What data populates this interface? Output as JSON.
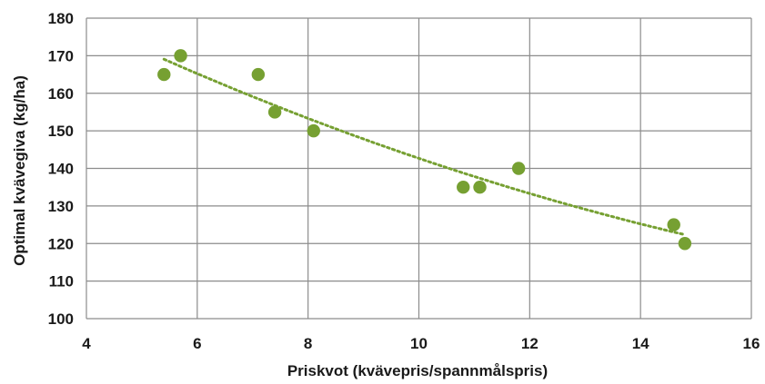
{
  "chart_data": {
    "type": "scatter",
    "title": "",
    "xlabel": "Priskvot  (kvävepris/spannmålspris)",
    "ylabel": "Optimal kvävegiva (kg/ha)",
    "xlim": [
      4,
      16
    ],
    "ylim": [
      100,
      180
    ],
    "xticks": [
      4,
      6,
      8,
      10,
      12,
      14,
      16
    ],
    "yticks": [
      100,
      110,
      120,
      130,
      140,
      150,
      160,
      170,
      180
    ],
    "grid": true,
    "legend": "none",
    "colors": {
      "points": "#76a032",
      "trendline": "#76a032",
      "grid": "#8c8c8c"
    },
    "series": [
      {
        "x": [
          5.4,
          5.7,
          7.1,
          7.4,
          8.1,
          10.8,
          11.1,
          11.8,
          14.6,
          14.8
        ],
        "y": [
          165,
          170,
          165,
          155,
          150,
          135,
          135,
          140,
          125,
          120
        ]
      }
    ],
    "trendline": {
      "type": "polynomial",
      "style": "dotted",
      "x_range": [
        5.4,
        14.8
      ]
    }
  }
}
